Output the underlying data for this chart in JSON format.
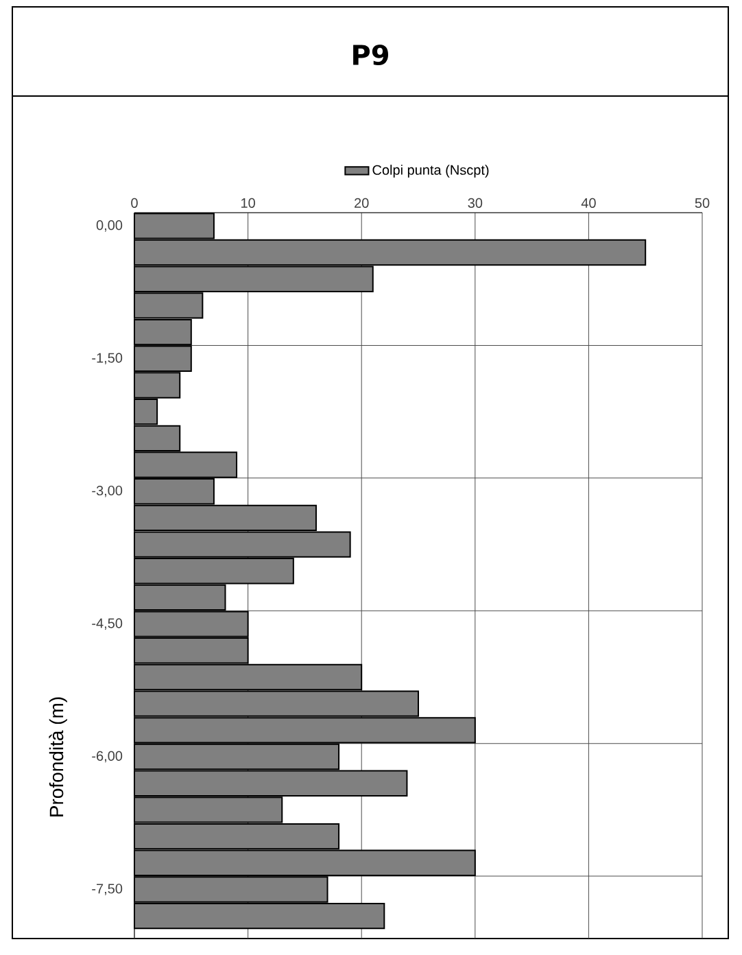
{
  "chart_data": {
    "type": "bar",
    "orientation": "horizontal",
    "title": "P9",
    "ylabel": "Profondità (m)",
    "categories": [
      "0,00",
      null,
      null,
      null,
      null,
      "-1,50",
      null,
      null,
      null,
      null,
      "-3,00",
      null,
      null,
      null,
      null,
      "-4,50",
      null,
      null,
      null,
      null,
      "-6,00",
      null,
      null,
      null,
      null,
      "-7,50",
      null
    ],
    "series": [
      {
        "name": "Colpi punta (Nscpt)",
        "color": "#808080",
        "values": [
          7,
          45,
          21,
          6,
          5,
          5,
          4,
          2,
          4,
          9,
          7,
          16,
          19,
          14,
          8,
          10,
          10,
          20,
          25,
          30,
          18,
          24,
          13,
          18,
          30,
          17,
          22
        ]
      }
    ],
    "xlim": [
      0,
      50
    ],
    "xticks": [
      0,
      10,
      20,
      30,
      40,
      50
    ],
    "grid": true,
    "legend": "top"
  }
}
